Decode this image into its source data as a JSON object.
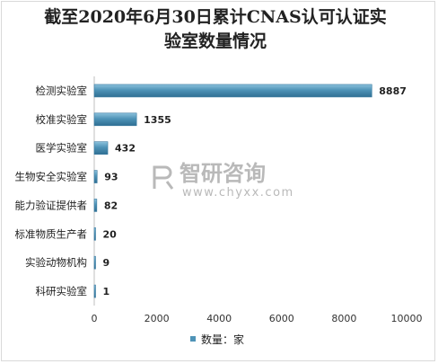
{
  "chart_data": {
    "type": "bar",
    "orientation": "horizontal",
    "title": "截至2020年6月30日累计CNAS认可认证实验室数量情况",
    "title_lines": [
      "截至2020年6月30日累计CNAS认可认证实",
      "验室数量情况"
    ],
    "categories": [
      "检测实验室",
      "校准实验室",
      "医学实验室",
      "生物安全实验室",
      "能力验证提供者",
      "标准物质生产者",
      "实验动物机构",
      "科研实验室"
    ],
    "series": [
      {
        "name": "数量：家",
        "values": [
          8887,
          1355,
          432,
          93,
          82,
          20,
          9,
          1
        ]
      }
    ],
    "data_labels": [
      "8887",
      "1355",
      "432",
      "93",
      "82",
      "20",
      "9",
      "1"
    ],
    "xlim": [
      0,
      10000
    ],
    "x_ticks": [
      "0",
      "2000",
      "4000",
      "6000",
      "8000",
      "10000"
    ],
    "grid": false,
    "legend_position": "bottom",
    "bar_color": "#4e93b7"
  },
  "watermark": {
    "brand": "智研咨询",
    "url": "www.chyxx.com"
  }
}
